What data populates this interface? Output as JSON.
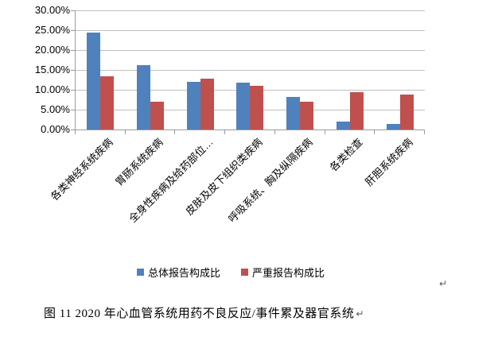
{
  "chart_data": {
    "type": "bar",
    "title": "",
    "categories": [
      "各类神经系统疾病",
      "胃肠系统疾病",
      "全身性疾病及给药部位…",
      "皮肤及皮下组织类疾病",
      "呼吸系统、胸及纵隔疾病",
      "各类检查",
      "肝胆系统疾病"
    ],
    "series": [
      {
        "name": "总体报告构成比",
        "color": "#4F81BD",
        "values": [
          24.4,
          16.3,
          12.1,
          11.9,
          8.2,
          2.1,
          1.5
        ]
      },
      {
        "name": "严重报告构成比",
        "color": "#C0504D",
        "values": [
          13.4,
          7.1,
          12.9,
          11.1,
          7.0,
          9.4,
          8.9
        ]
      }
    ],
    "y_ticks": [
      "30.00%",
      "25.00%",
      "20.00%",
      "15.00%",
      "10.00%",
      "5.00%",
      "0.00%"
    ],
    "ylim": [
      0,
      30
    ],
    "y_unit": "%",
    "grid": true,
    "legend_position": "bottom",
    "x_label_rotation_deg": 45
  },
  "caption": {
    "text": "图 11  2020 年心血管系统用药不良反应/事件累及器官系统"
  },
  "marks": {
    "paragraph_return": "↵"
  },
  "colors": {
    "series_total": "#4F81BD",
    "series_serious": "#C0504D",
    "gridline": "#BFBFBF",
    "axis": "#9C9C9C",
    "background": "#FFFFFF"
  }
}
